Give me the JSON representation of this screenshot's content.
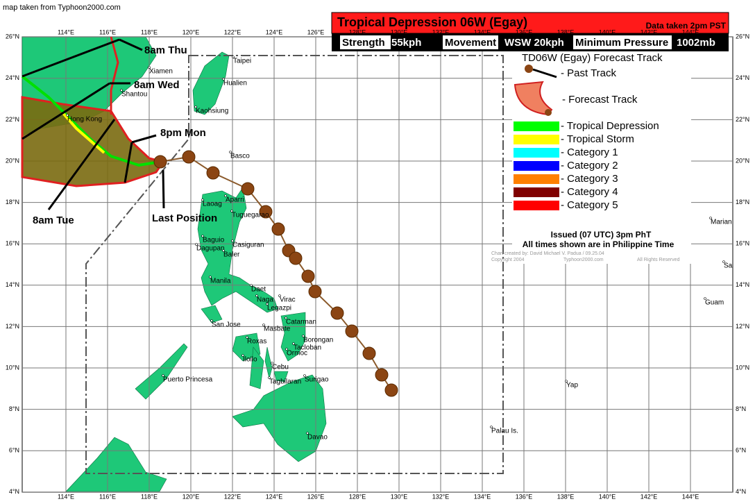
{
  "source_note": "map taken from Typhoon2000.com",
  "header": {
    "title": "Tropical Depression 06W (Egay)",
    "data_time": "Data taken 2pm  PST",
    "fields": [
      {
        "label": "Strength",
        "value": "55kph"
      },
      {
        "label": "Movement",
        "value": "WSW 20kph"
      },
      {
        "label": "Minimum Pressure",
        "value": "1002mb"
      }
    ]
  },
  "legend": {
    "title": "TD06W (Egay) Forecast Track",
    "past_track": "- Past Track",
    "forecast_track": "- Forecast Track",
    "categories": [
      {
        "label": "- Tropical Depression",
        "color": "#00ff00"
      },
      {
        "label": "- Tropical Storm",
        "color": "#ffff00"
      },
      {
        "label": "- Category 1",
        "color": "#00ffff"
      },
      {
        "label": "- Category 2",
        "color": "#0000ff"
      },
      {
        "label": "- Category 3",
        "color": "#ff8000"
      },
      {
        "label": "- Category 4",
        "color": "#800000"
      },
      {
        "label": "- Category 5",
        "color": "#ff0000"
      }
    ],
    "issued": "Issued (07 UTC) 3pm PhT",
    "times_note": "All times shown are in Philippine Time",
    "credits": [
      "Chart created by:  David Michael V. Padua / 09.25.04",
      "Copyright 2004",
      "Typhoon2000.com",
      "All Rights Reserved"
    ]
  },
  "annotations": [
    "8am Thu",
    "8am Wed",
    "8pm Mon",
    "8am Tue",
    "Last Position"
  ],
  "axes": {
    "longitudes": [
      "114°E",
      "116°E",
      "118°E",
      "120°E",
      "122°E",
      "124°E",
      "126°E",
      "128°E",
      "130°E",
      "132°E",
      "134°E",
      "136°E",
      "138°E",
      "140°E",
      "142°E",
      "144°E"
    ],
    "latitudes": [
      "26°N",
      "24°N",
      "22°N",
      "20°N",
      "18°N",
      "16°N",
      "14°N",
      "12°N",
      "10°N",
      "8°N",
      "6°N",
      "4°N"
    ]
  },
  "places": [
    "Taipei",
    "Hualien",
    "Kaohsiung",
    "Basco",
    "Xiamen",
    "Shantou",
    "Hong Kong",
    "Aparri",
    "Laoag",
    "Tuguegarao",
    "Baguio",
    "Dagupan",
    "Casiguran",
    "Baler",
    "Manila",
    "Daet",
    "Naga",
    "Virac",
    "Legazpi",
    "San Jose",
    "Masbate",
    "Catarman",
    "Roxas",
    "Borongan",
    "Tacloban",
    "Iloilo",
    "Ormoc",
    "Cebu",
    "Surigao",
    "Tagbilaran",
    "Puerto Princesa",
    "Davao",
    "Yap",
    "Palau Is.",
    "Guam",
    "Marian",
    "Sa"
  ]
}
